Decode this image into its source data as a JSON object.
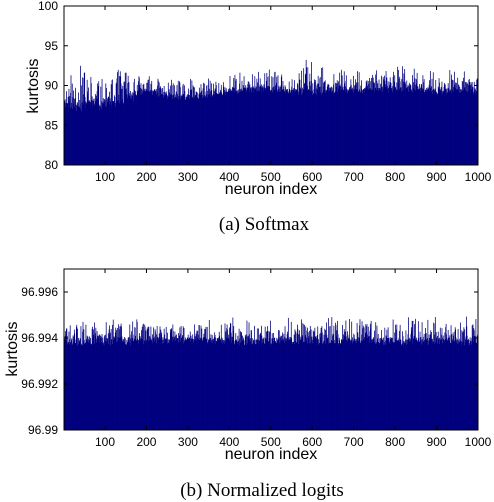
{
  "chart_data": [
    {
      "type": "bar",
      "caption": "(a)  Softmax",
      "xlabel": "neuron index",
      "ylabel": "kurtosis",
      "xlim": [
        1,
        1000
      ],
      "ylim": [
        80,
        100
      ],
      "xticks": [
        100,
        200,
        300,
        400,
        500,
        600,
        700,
        800,
        900,
        1000
      ],
      "yticks": [
        80,
        85,
        90,
        95,
        100
      ],
      "ytick_labels": [
        "80",
        "85",
        "90",
        "95",
        "100"
      ],
      "bar_color": "#00007f",
      "n_bars": 1000,
      "value_profile": {
        "x": [
          1,
          50,
          100,
          150,
          200,
          250,
          300,
          350,
          400,
          450,
          500,
          550,
          600,
          650,
          700,
          750,
          800,
          850,
          900,
          950,
          1000
        ],
        "typical": [
          88.0,
          88.2,
          88.0,
          89.0,
          89.5,
          89.0,
          88.8,
          89.0,
          89.5,
          89.8,
          89.8,
          89.6,
          90.0,
          89.8,
          89.7,
          89.8,
          90.0,
          89.8,
          89.6,
          89.8,
          89.5
        ],
        "peak": [
          90.8,
          93.0,
          91.0,
          93.0,
          91.5,
          91.0,
          90.8,
          91.0,
          91.6,
          92.0,
          92.0,
          91.6,
          94.0,
          92.2,
          92.0,
          92.0,
          92.8,
          92.2,
          92.2,
          92.0,
          91.6
        ]
      },
      "grid": false,
      "legend": "none"
    },
    {
      "type": "bar",
      "caption": "(b)  Normalized logits",
      "xlabel": "neuron index",
      "ylabel": "kurtosis",
      "xlim": [
        1,
        1000
      ],
      "ylim": [
        96.99,
        96.997
      ],
      "xticks": [
        100,
        200,
        300,
        400,
        500,
        600,
        700,
        800,
        900,
        1000
      ],
      "yticks": [
        96.99,
        96.992,
        96.994,
        96.996
      ],
      "ytick_labels": [
        "96.99",
        "96.992",
        "96.994",
        "96.996"
      ],
      "bar_color": "#00007f",
      "n_bars": 1000,
      "value_profile": {
        "x": [
          1,
          50,
          100,
          150,
          200,
          250,
          300,
          350,
          400,
          450,
          500,
          550,
          600,
          650,
          700,
          750,
          800,
          850,
          900,
          950,
          1000
        ],
        "typical": [
          96.9939,
          96.99395,
          96.994,
          96.994,
          96.994,
          96.994,
          96.994,
          96.994,
          96.994,
          96.994,
          96.994,
          96.994,
          96.99405,
          96.994,
          96.994,
          96.994,
          96.994,
          96.994,
          96.994,
          96.994,
          96.994
        ],
        "peak": [
          96.9946,
          96.9948,
          96.9949,
          96.995,
          96.9948,
          96.9948,
          96.9947,
          96.9948,
          96.995,
          96.9949,
          96.9949,
          96.9949,
          96.995,
          96.9949,
          96.9949,
          96.9949,
          96.995,
          96.995,
          96.995,
          96.9949,
          96.9952
        ]
      },
      "grid": false,
      "legend": "none"
    }
  ]
}
